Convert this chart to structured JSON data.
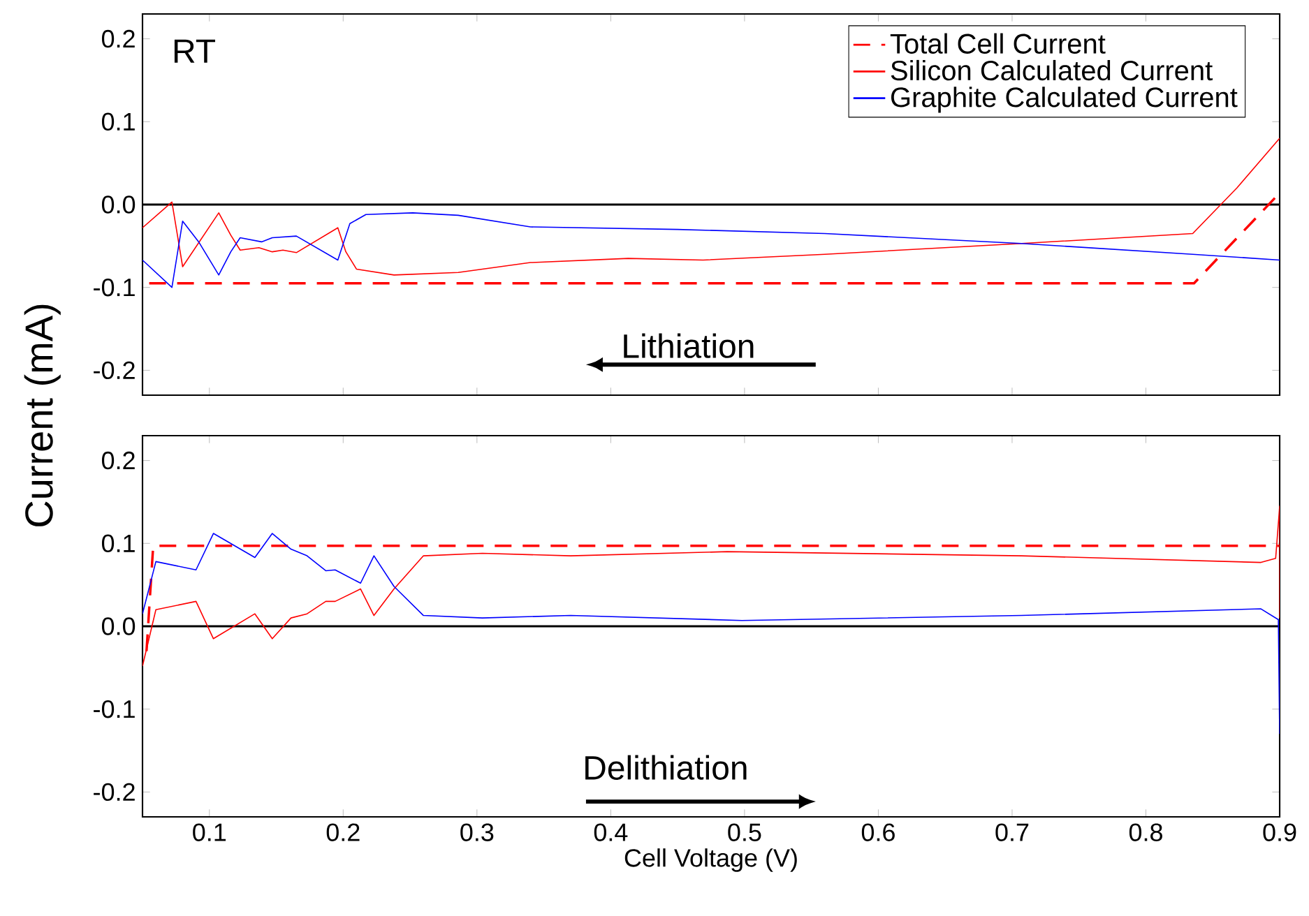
{
  "chart_data": [
    {
      "type": "line",
      "ylabel": "Current (mA)",
      "annotations": [
        "RT",
        "Lithiation"
      ],
      "xlim": [
        0.05,
        0.9
      ],
      "ylim": [
        -0.23,
        0.23
      ],
      "xticks": [
        0.1,
        0.2,
        0.3,
        0.4,
        0.5,
        0.6,
        0.7,
        0.8,
        0.9
      ],
      "yticks": [
        -0.2,
        -0.1,
        {
          "value": 0,
          "label": "0.0"
        },
        0.1,
        0.2
      ],
      "tick_labels": "y",
      "legend": "top right",
      "grid": false,
      "marker": "none",
      "ref_lines": [
        {
          "axis": "y",
          "value": 0,
          "color": "#000000"
        }
      ],
      "series": [
        {
          "name": "Total Cell Current",
          "color": "#ff0000",
          "line_style": "dashed",
          "x": [
            0.055,
            0.836,
            0.9
          ],
          "values": [
            -0.095,
            -0.095,
            0.014
          ]
        },
        {
          "name": "Silicon Calculated Current",
          "color": "#ff0000",
          "line_style": "solid",
          "x": [
            0.05,
            0.072,
            0.08,
            0.107,
            0.116,
            0.123,
            0.137,
            0.147,
            0.155,
            0.165,
            0.196,
            0.202,
            0.21,
            0.238,
            0.286,
            0.34,
            0.413,
            0.469,
            0.56,
            0.707,
            0.835,
            0.868,
            0.9
          ],
          "values": [
            -0.028,
            0.003,
            -0.075,
            -0.01,
            -0.037,
            -0.055,
            -0.052,
            -0.057,
            -0.055,
            -0.058,
            -0.028,
            -0.057,
            -0.078,
            -0.085,
            -0.082,
            -0.07,
            -0.065,
            -0.067,
            -0.06,
            -0.047,
            -0.035,
            0.02,
            0.08
          ]
        },
        {
          "name": "Graphite Calculated Current",
          "color": "#0000ff",
          "line_style": "solid",
          "x": [
            0.05,
            0.072,
            0.08,
            0.092,
            0.107,
            0.116,
            0.123,
            0.139,
            0.147,
            0.165,
            0.196,
            0.205,
            0.217,
            0.252,
            0.286,
            0.34,
            0.45,
            0.56,
            0.707,
            0.835,
            0.9
          ],
          "values": [
            -0.067,
            -0.1,
            -0.02,
            -0.045,
            -0.085,
            -0.057,
            -0.04,
            -0.045,
            -0.04,
            -0.038,
            -0.067,
            -0.023,
            -0.012,
            -0.01,
            -0.013,
            -0.027,
            -0.03,
            -0.035,
            -0.047,
            -0.06,
            -0.067
          ]
        }
      ]
    },
    {
      "type": "line",
      "xlabel": "Cell Voltage (V)",
      "annotations": [
        "Delithiation"
      ],
      "xlim": [
        0.05,
        0.9
      ],
      "ylim": [
        -0.23,
        0.23
      ],
      "xticks": [
        0.1,
        0.2,
        0.3,
        0.4,
        0.5,
        0.6,
        0.7,
        0.8,
        0.9
      ],
      "yticks": [
        -0.2,
        -0.1,
        {
          "value": 0,
          "label": "0.0"
        },
        0.1,
        0.2
      ],
      "grid": false,
      "marker": "none",
      "legend": false,
      "ref_lines": [
        {
          "axis": "y",
          "value": 0,
          "color": "#000000"
        }
      ],
      "series": [
        {
          "color": "#ff0000",
          "line_style": "dashed",
          "x": [
            0.053,
            0.058,
            0.9
          ],
          "values": [
            -0.03,
            0.097,
            0.097
          ]
        },
        {
          "color": "#ff0000",
          "line_style": "solid",
          "x": [
            0.05,
            0.06,
            0.09,
            0.103,
            0.134,
            0.147,
            0.161,
            0.173,
            0.187,
            0.194,
            0.213,
            0.223,
            0.238,
            0.26,
            0.304,
            0.37,
            0.487,
            0.707,
            0.886,
            0.897,
            0.9,
            0.9
          ],
          "values": [
            -0.048,
            0.02,
            0.03,
            -0.015,
            0.015,
            -0.015,
            0.01,
            0.015,
            0.03,
            0.03,
            0.045,
            0.013,
            0.045,
            0.085,
            0.088,
            0.085,
            0.09,
            0.085,
            0.077,
            0.082,
            0.145,
            0.01
          ]
        },
        {
          "color": "#0000ff",
          "line_style": "solid",
          "x": [
            0.05,
            0.06,
            0.09,
            0.103,
            0.134,
            0.147,
            0.161,
            0.173,
            0.187,
            0.194,
            0.213,
            0.223,
            0.238,
            0.26,
            0.304,
            0.37,
            0.498,
            0.707,
            0.886,
            0.899,
            0.9
          ],
          "values": [
            0.015,
            0.078,
            0.068,
            0.112,
            0.083,
            0.112,
            0.093,
            0.085,
            0.067,
            0.068,
            0.052,
            0.085,
            0.048,
            0.013,
            0.01,
            0.013,
            0.007,
            0.013,
            0.021,
            0.008,
            -0.13
          ]
        }
      ]
    }
  ]
}
